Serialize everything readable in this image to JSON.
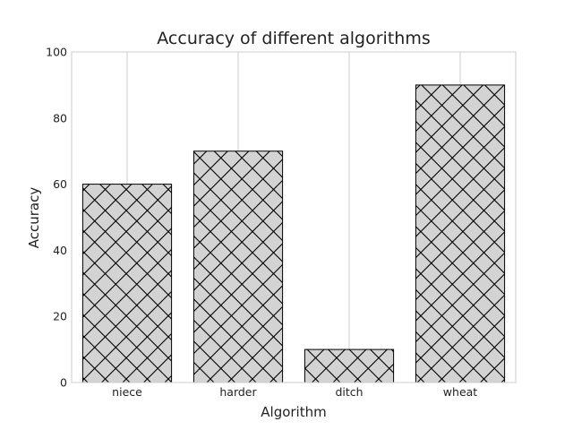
{
  "chart_data": {
    "type": "bar",
    "title": "Accuracy of different algorithms",
    "xlabel": "Algorithm",
    "ylabel": "Accuracy",
    "categories": [
      "niece",
      "harder",
      "ditch",
      "wheat"
    ],
    "values": [
      60,
      70,
      10,
      90
    ],
    "ylim": [
      0,
      100
    ],
    "yticks": [
      0,
      20,
      40,
      60,
      80,
      100
    ],
    "grid": true,
    "legend": "none",
    "bar_color": "#d3d3d3",
    "bar_edge_color": "#000000",
    "hatch": "crosshatch",
    "grid_color": "#cccccc",
    "frame_color": "#cccccc"
  }
}
